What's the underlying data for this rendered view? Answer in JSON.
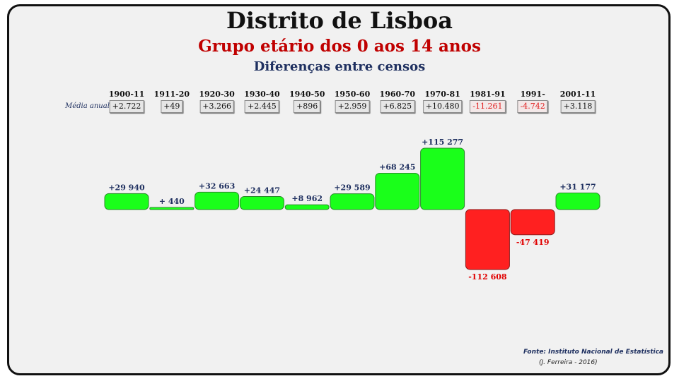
{
  "titles": {
    "main": "Distrito de Lisboa",
    "subtitle": "Grupo etário dos 0 aos 14 anos",
    "subsubtitle": "Diferenças entre censos"
  },
  "media_anual_label": "Média anual",
  "colors": {
    "positive": "#1aff1a",
    "negative": "#ff2020",
    "positive_label": "#1f3060",
    "negative_label": "#e00000"
  },
  "chart_data": {
    "type": "bar",
    "categories": [
      "1900-11",
      "1911-20",
      "1920-30",
      "1930-40",
      "1940-50",
      "1950-60",
      "1960-70",
      "1970-81",
      "1981-91",
      "1991-2001",
      "2001-11"
    ],
    "values": [
      29940,
      440,
      32663,
      24447,
      8962,
      29589,
      68245,
      115277,
      -112608,
      -47419,
      31177
    ],
    "value_labels": [
      "+29 940",
      "+ 440",
      "+32 663",
      "+24 447",
      "+8 962",
      "+29 589",
      "+68 245",
      "+115 277",
      "-112 608",
      "-47 419",
      "+31 177"
    ],
    "annual_average": [
      "+2.722",
      "+49",
      "+3.266",
      "+2.445",
      "+896",
      "+2.959",
      "+6.825",
      "+10.480",
      "-11.261",
      "-4.742",
      "+3.118"
    ],
    "title": "Distrito de Lisboa",
    "xlabel": "",
    "ylabel": "",
    "grid": false
  },
  "footer": {
    "source": "Fonte: Instituto Nacional de Estatística",
    "author": "(J. Ferreira - 2016)"
  }
}
